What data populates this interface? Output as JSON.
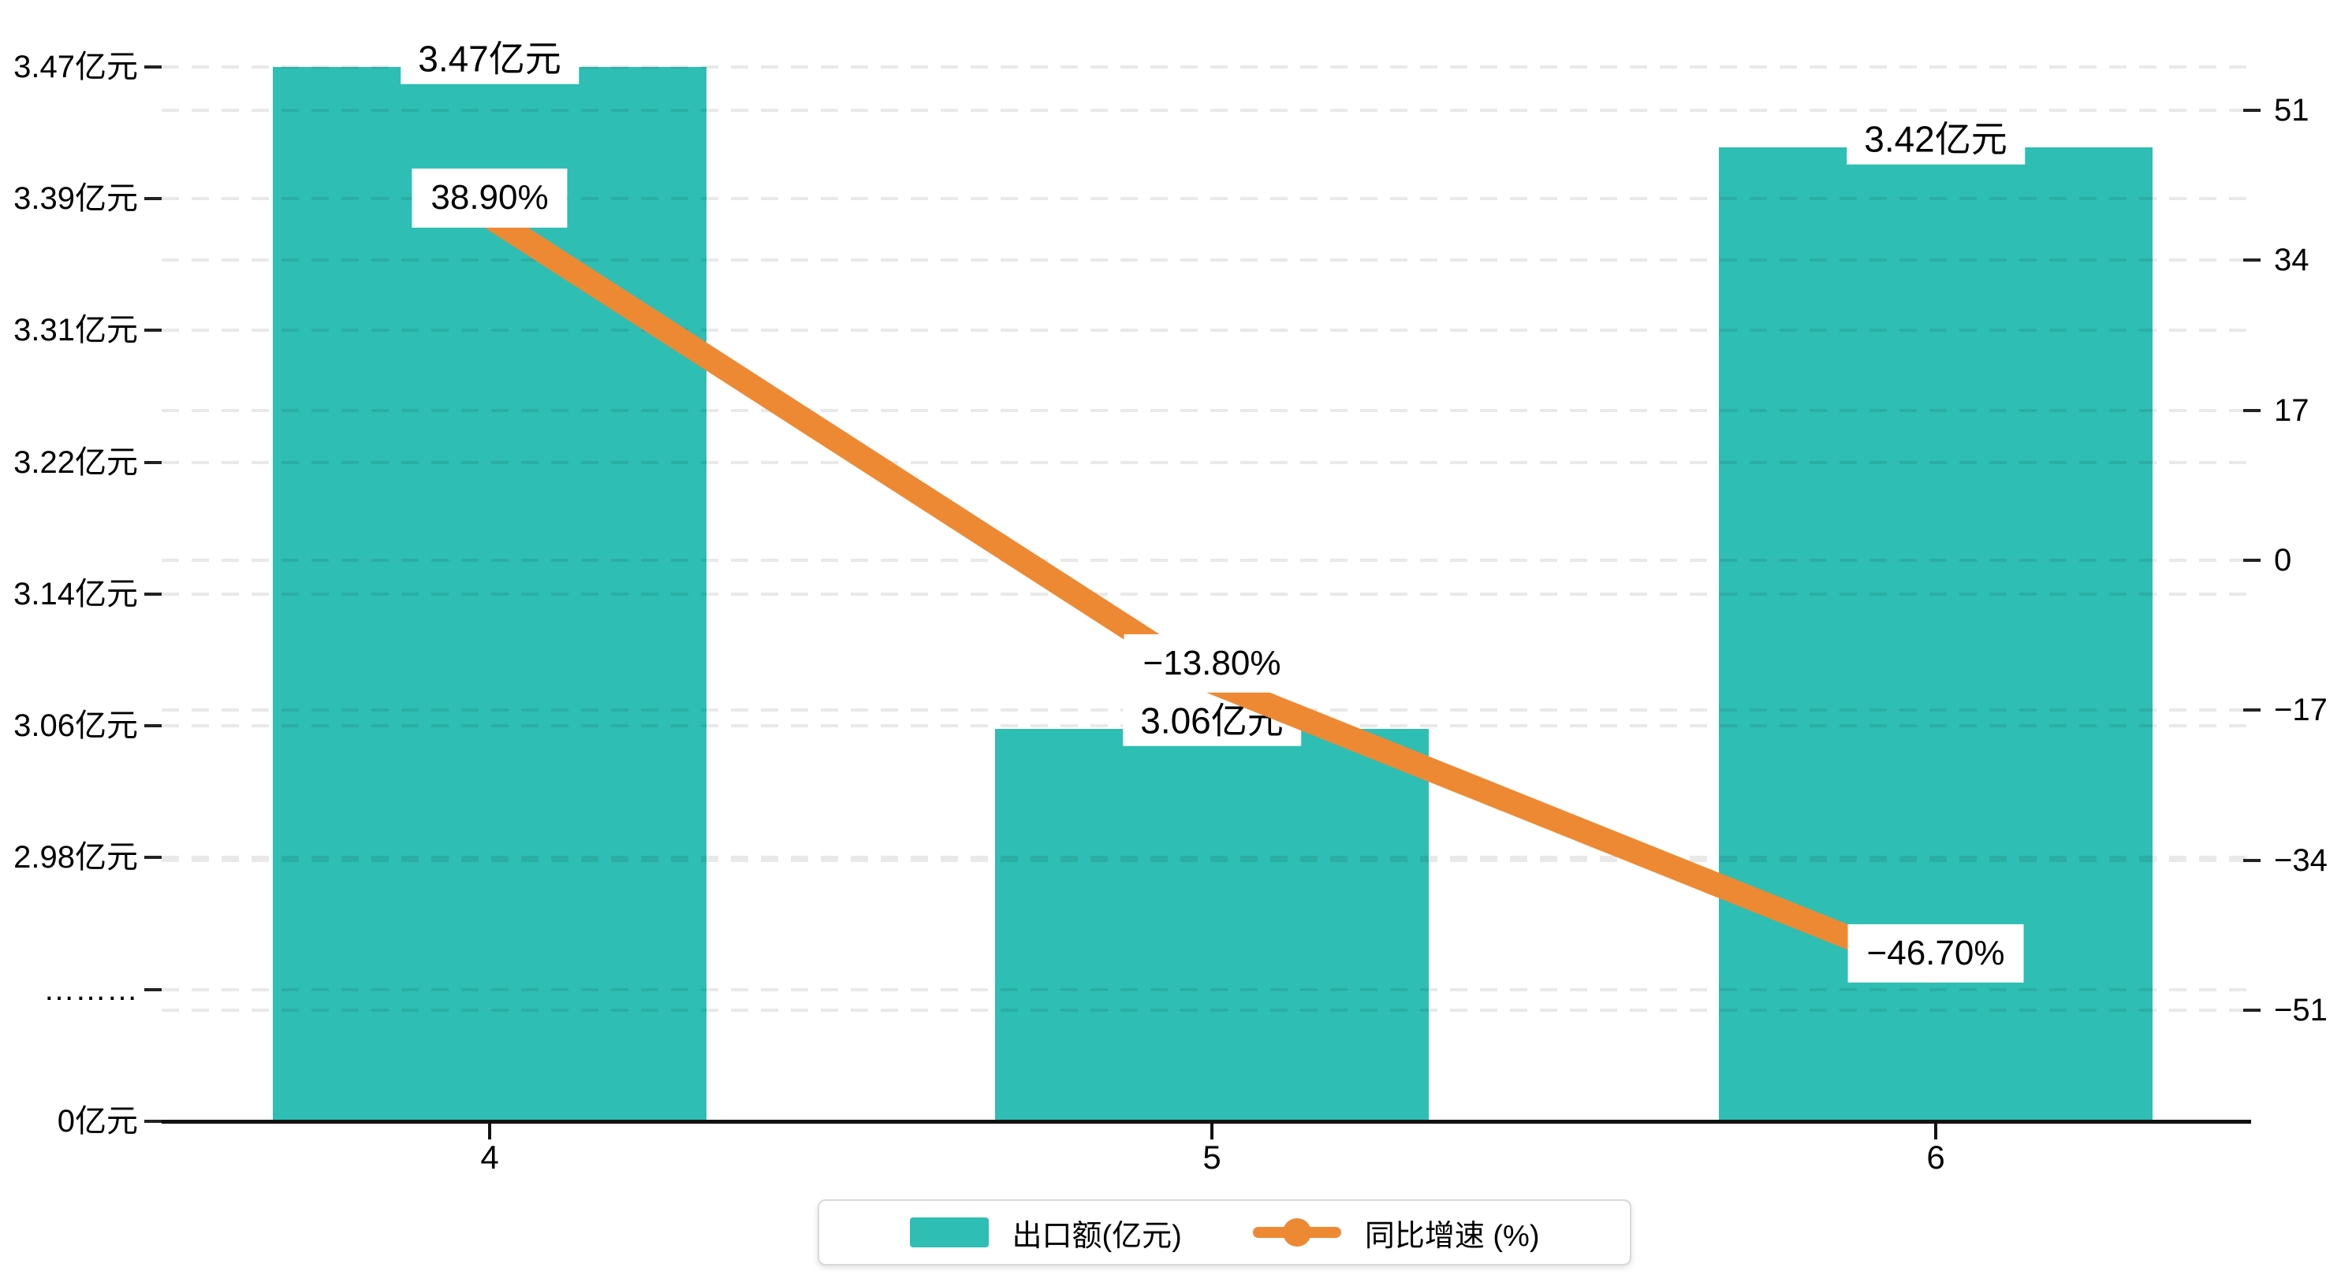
{
  "chart_data": {
    "type": "bar+line",
    "categories": [
      "4",
      "5",
      "6"
    ],
    "series": [
      {
        "name": "出口额(亿元)",
        "type": "bar",
        "axis": "left",
        "unit": "亿元",
        "values": [
          3.47,
          3.06,
          3.42
        ],
        "data_labels": [
          "3.47亿元",
          "3.06亿元",
          "3.42亿元"
        ],
        "color": "#2ebeb3"
      },
      {
        "name": "同比增速 (%)",
        "type": "line",
        "axis": "right",
        "unit": "%",
        "values": [
          38.9,
          -13.8,
          -46.7
        ],
        "data_labels": [
          "38.90%",
          "−13.80%",
          "−46.70%"
        ],
        "color": "#ee8933"
      }
    ],
    "left_axis": {
      "labels_top_to_bottom": [
        "3.47亿元",
        "3.39亿元",
        "3.31亿元",
        "3.22亿元",
        "3.14亿元",
        "3.06亿元",
        "2.98亿元",
        "………",
        "0亿元"
      ],
      "has_break": true,
      "shown_segment": [
        2.98,
        3.47
      ],
      "min": 0
    },
    "right_axis": {
      "labels_top_to_bottom": [
        "51",
        "34",
        "17",
        "0",
        "−17",
        "−34",
        "−51"
      ],
      "max": 51,
      "min": -51,
      "step": 17
    },
    "x_axis": {
      "labels": [
        "4",
        "5",
        "6"
      ]
    },
    "legend": {
      "position": "bottom-center",
      "items": [
        {
          "label": "出口额(亿元)",
          "marker": "bar-swatch",
          "color": "#2ebeb3"
        },
        {
          "label": "同比增速 (%)",
          "marker": "line-dot",
          "color": "#ee8933"
        }
      ]
    },
    "layout_hints": {
      "grid": "dashed-horizontal",
      "legend_border": true
    },
    "colors": {
      "bar": "#2ebeb3",
      "line": "#ee8933",
      "axis": "#111111",
      "gridline": "#e8e8e8",
      "label_bg": "#ffffff",
      "text": "#000000"
    }
  }
}
